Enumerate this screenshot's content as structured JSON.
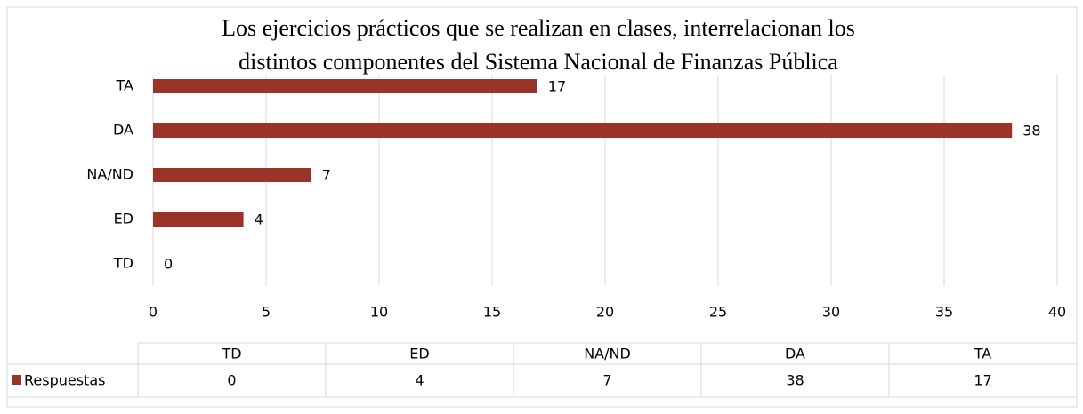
{
  "chart_data": {
    "type": "bar",
    "orientation": "horizontal",
    "title": [
      "Los ejercicios prácticos que se realizan en clases, interrelacionan los",
      "distintos componentes del Sistema Nacional de Finanzas Pública"
    ],
    "categories": [
      "TD",
      "ED",
      "NA/ND",
      "DA",
      "TA"
    ],
    "series": [
      {
        "name": "Respuestas",
        "color": "#9c3329",
        "values": [
          0,
          4,
          7,
          38,
          17
        ]
      }
    ],
    "xlim": [
      0,
      40
    ],
    "xticks": [
      0,
      5,
      10,
      15,
      20,
      25,
      30,
      35,
      40
    ],
    "grid": true,
    "data_table": true
  }
}
